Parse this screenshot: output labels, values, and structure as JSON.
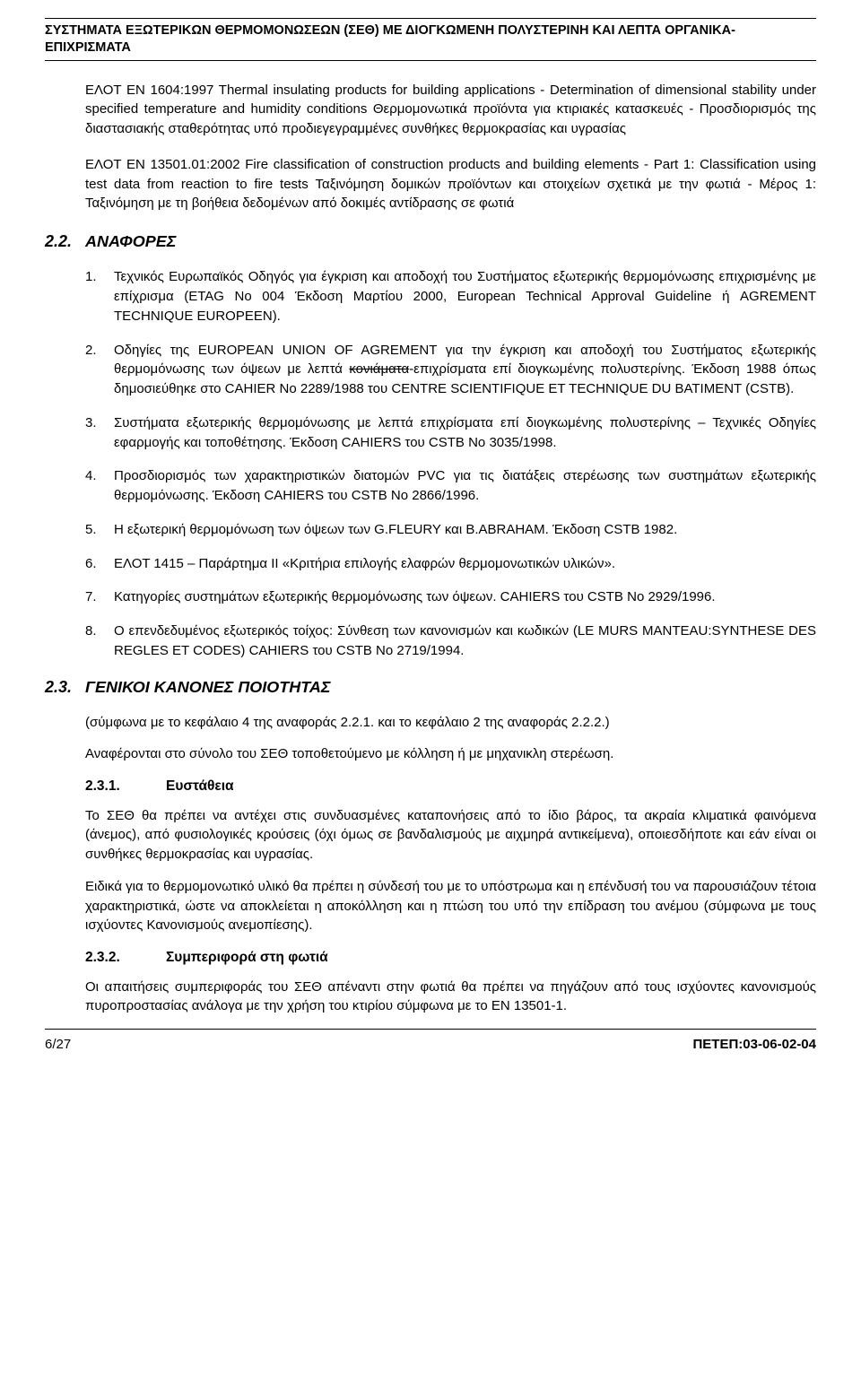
{
  "header": {
    "title": "ΣΥΣΤΗΜΑΤΑ ΕΞΩΤΕΡΙΚΩΝ ΘΕΡΜΟΜΟΝΩΣΕΩΝ (ΣΕΘ) ΜΕ ΔΙΟΓΚΩΜΕΝΗ ΠΟΛΥΣΤΕΡΙΝΗ ΚΑΙ ΛΕΠΤΑ ΟΡΓΑΝΙΚΑ-ΕΠΙΧΡΙΣΜΑΤΑ"
  },
  "intro_paras": [
    "ΕΛΟΤ EN 1604:1997 Thermal insulating products for building applications - Determination of dimensional stability under specified temperature and humidity conditions Θερμομονωτικά προϊόντα για κτιριακές κατασκευές - Προσδιορισμός της διαστασιακής σταθερότητας υπό προδιεγεγραμμένες συνθήκες θερμοκρασίας και υγρασίας",
    "ΕΛΟΤ ΕΝ 13501.01:2002 Fire classification of construction products and building elements - Part 1: Classification using test data from reaction to fire tests Ταξινόμηση δομικών προϊόντων και στοιχείων σχετικά με την φωτιά - Μέρος 1: Ταξινόμηση με τη βοήθεια δεδομένων από δοκιμές αντίδρασης σε φωτιά"
  ],
  "sec22": {
    "num": "2.2.",
    "title": "ΑΝΑΦΟΡΕΣ"
  },
  "refs": [
    {
      "n": "1.",
      "t": "Τεχνικός Ευρωπαϊκός Οδηγός για έγκριση και αποδοχή του Συστήματος εξωτερικής θερμομόνωσης επιχρισμένης με επίχρισμα (ETAG No 004 Έκδοση Μαρτίου 2000, European Technical Approval Guideline ή AGREMENT TECHNIQUE EUROPEEN)."
    },
    {
      "n": "2.",
      "t_pre": "Οδηγίες της EUROPEAN UNION OF AGREMENT για την έγκριση και αποδοχή του Συστήματος εξωτερικής θερμομόνωσης των όψεων με λεπτά ",
      "strike": "κονιάματα",
      "t_post": "-επιχρίσματα επί διογκωμένης πολυστερίνης. Έκδοση 1988 όπως δημοσιεύθηκε στο CAHIER No 2289/1988 του CENTRE SCIENTIFIQUE ET TECHNIQUE DU BATIMENT (CSTB)."
    },
    {
      "n": "3.",
      "t": "Συστήματα  εξωτερικής θερμομόνωσης με λεπτά επιχρίσματα επί διογκωμένης πολυστερίνης – Τεχνικές Οδηγίες εφαρμογής και τοποθέτησης. Έκδοση CAHIERS του CSTB No 3035/1998."
    },
    {
      "n": "4.",
      "t": "Προσδιορισμός των χαρακτηριστικών διατομών PVC για τις διατάξεις στερέωσης των συστημάτων εξωτερικής θερμομόνωσης. Έκδοση CAHIERS του CSTB No 2866/1996."
    },
    {
      "n": "5.",
      "t": "Η εξωτερική θερμομόνωση των όψεων των G.FLEURY και B.ABRAHAM. Έκδοση CSTB 1982."
    },
    {
      "n": "6.",
      "t": "ΕΛΟΤ 1415 – Παράρτημα II «Κριτήρια επιλογής ελαφρών θερμομονωτικών υλικών»."
    },
    {
      "n": "7.",
      "t": "Κατηγορίες συστημάτων εξωτερικής θερμομόνωσης των όψεων. CAHIERS του CSTB No 2929/1996."
    },
    {
      "n": "8.",
      "t": "Ο επενδεδυμένος εξωτερικός τοίχος: Σύνθεση των κανονισμών και κωδικών (LE MURS MANTEAU:SYNTHESE DES REGLES ET CODES) CAHIERS του CSTB No 2719/1994."
    }
  ],
  "sec23": {
    "num": "2.3.",
    "title": "ΓΕΝΙΚΟΙ ΚΑΝΟΝΕΣ ΠΟΙΟΤΗΤΑΣ"
  },
  "sec23_intro": [
    "(σύμφωνα με το κεφάλαιο 4 της αναφοράς 2.2.1. και το κεφάλαιο 2 της αναφοράς 2.2.2.)",
    "Αναφέρονται στο σύνολο του ΣΕΘ τοποθετούμενο με κόλληση ή με μηχανικλη στερέωση."
  ],
  "sub231": {
    "num": "2.3.1.",
    "title": "Ευστάθεια",
    "paras": [
      "Το ΣΕΘ θα πρέπει να αντέχει στις συνδυασμένες καταπονήσεις από το ίδιο βάρος, τα ακραία κλιματικά φαινόμενα (άνεμος), από φυσιολογικές κρούσεις (όχι όμως σε βανδαλισμούς με αιχμηρά αντικείμενα), οποιεσδήποτε και εάν είναι οι συνθήκες θερμοκρασίας και υγρασίας.",
      "Ειδικά για το θερμομονωτικό υλικό θα πρέπει η σύνδεσή του με το υπόστρωμα και η επένδυσή του να παρουσιάζουν τέτοια χαρακτηριστικά, ώστε να αποκλείεται η αποκόλληση και η πτώση του υπό την επίδραση του ανέμου (σύμφωνα με τους ισχύοντες Κανονισμούς ανεμοπίεσης)."
    ]
  },
  "sub232": {
    "num": "2.3.2.",
    "title": "Συμπεριφορά στη φωτιά",
    "paras": [
      "Οι απαιτήσεις συμπεριφοράς του ΣΕΘ απέναντι στην φωτιά θα πρέπει να πηγάζουν από τους ισχύοντες κανονισμούς πυροπροστασίας ανάλογα με την χρήση του κτιρίου σύμφωνα με το EN 13501-1."
    ]
  },
  "footer": {
    "left": "6/27",
    "right": "ΠΕΤΕΠ:03-06-02-04"
  }
}
